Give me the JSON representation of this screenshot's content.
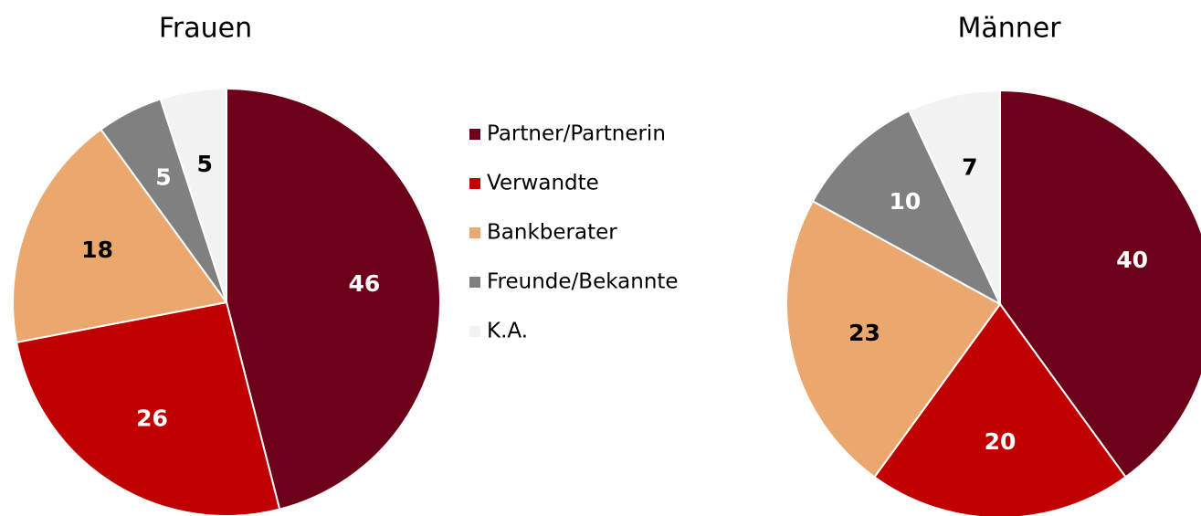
{
  "legend": {
    "categories": [
      "Partner/Partnerin",
      "Verwandte",
      "Bankberater",
      "Freunde/Bekannte",
      "K.A."
    ],
    "colors": [
      "#6d0019",
      "#c00000",
      "#eba86e",
      "#808080",
      "#f2f2f2"
    ]
  },
  "chart_data": [
    {
      "type": "pie",
      "title": "Frauen",
      "values": [
        46,
        26,
        18,
        5,
        5
      ]
    },
    {
      "type": "pie",
      "title": "Männer",
      "values": [
        40,
        20,
        23,
        10,
        7
      ]
    }
  ]
}
